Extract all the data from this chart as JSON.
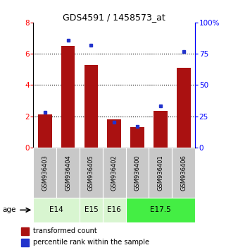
{
  "title": "GDS4591 / 1458573_at",
  "samples": [
    "GSM936403",
    "GSM936404",
    "GSM936405",
    "GSM936402",
    "GSM936400",
    "GSM936401",
    "GSM936406"
  ],
  "transformed_counts": [
    2.1,
    6.5,
    5.3,
    1.8,
    1.3,
    2.35,
    5.1
  ],
  "percentile_ranks": [
    28,
    86,
    82,
    20,
    17,
    33,
    77
  ],
  "age_groups": [
    {
      "label": "E14",
      "start": 0,
      "end": 1,
      "color": "#d8f5d0"
    },
    {
      "label": "E15",
      "start": 2,
      "end": 2,
      "color": "#d8f5d0"
    },
    {
      "label": "E16",
      "start": 3,
      "end": 3,
      "color": "#d8f5d0"
    },
    {
      "label": "E17.5",
      "start": 4,
      "end": 6,
      "color": "#44ee44"
    }
  ],
  "ylim_left": [
    0,
    8
  ],
  "ylim_right": [
    0,
    100
  ],
  "yticks_left": [
    0,
    2,
    4,
    6,
    8
  ],
  "yticks_right": [
    0,
    25,
    50,
    75,
    100
  ],
  "bar_color": "#aa1111",
  "dot_color": "#2233cc",
  "background_color": "#ffffff",
  "legend_red_label": "transformed count",
  "legend_blue_label": "percentile rank within the sample",
  "age_label": "age"
}
